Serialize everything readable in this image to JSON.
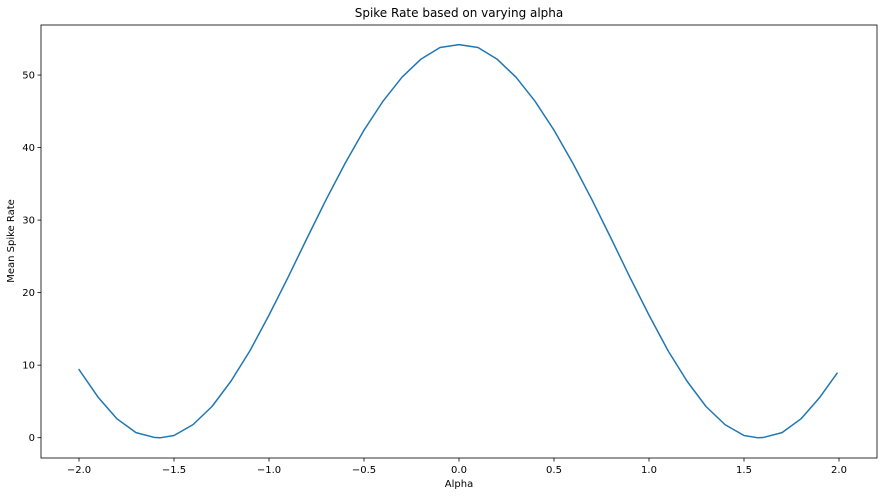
{
  "chart_data": {
    "type": "line",
    "title": "Spike Rate based on varying alpha",
    "xlabel": "Alpha",
    "ylabel": "Mean Spike Rate",
    "xlim": [
      -2.2,
      2.2
    ],
    "ylim": [
      -2.8,
      56.9
    ],
    "xticks": [
      -2.0,
      -1.5,
      -1.0,
      -0.5,
      0.0,
      0.5,
      1.0,
      1.5,
      2.0
    ],
    "xtick_labels": [
      "−2.0",
      "−1.5",
      "−1.0",
      "−0.5",
      "0.0",
      "0.5",
      "1.0",
      "1.5",
      "2.0"
    ],
    "yticks": [
      0,
      10,
      20,
      30,
      40,
      50
    ],
    "ytick_labels": [
      "0",
      "10",
      "20",
      "30",
      "40",
      "50"
    ],
    "grid": false,
    "line_color": "#1f77b4",
    "series": [
      {
        "x": [
          -2.0,
          -1.9,
          -1.8,
          -1.7,
          -1.6,
          -1.57,
          -1.5,
          -1.4,
          -1.3,
          -1.2,
          -1.1,
          -1.0,
          -0.9,
          -0.8,
          -0.7,
          -0.6,
          -0.5,
          -0.4,
          -0.3,
          -0.2,
          -0.1,
          0.0,
          0.1,
          0.2,
          0.3,
          0.4,
          0.5,
          0.6,
          0.7,
          0.8,
          0.9,
          1.0,
          1.1,
          1.2,
          1.3,
          1.4,
          1.5,
          1.57,
          1.6,
          1.7,
          1.8,
          1.9,
          1.99
        ],
        "values": [
          9.4,
          5.6,
          2.6,
          0.7,
          0.02,
          0.0,
          0.3,
          1.8,
          4.3,
          7.8,
          12.0,
          16.9,
          22.1,
          27.5,
          32.8,
          37.8,
          42.4,
          46.4,
          49.7,
          52.2,
          53.8,
          54.2,
          53.8,
          52.2,
          49.7,
          46.4,
          42.4,
          37.8,
          32.8,
          27.5,
          22.1,
          16.9,
          12.0,
          7.8,
          4.3,
          1.8,
          0.3,
          0.0,
          0.02,
          0.7,
          2.6,
          5.6,
          8.9
        ]
      }
    ]
  }
}
